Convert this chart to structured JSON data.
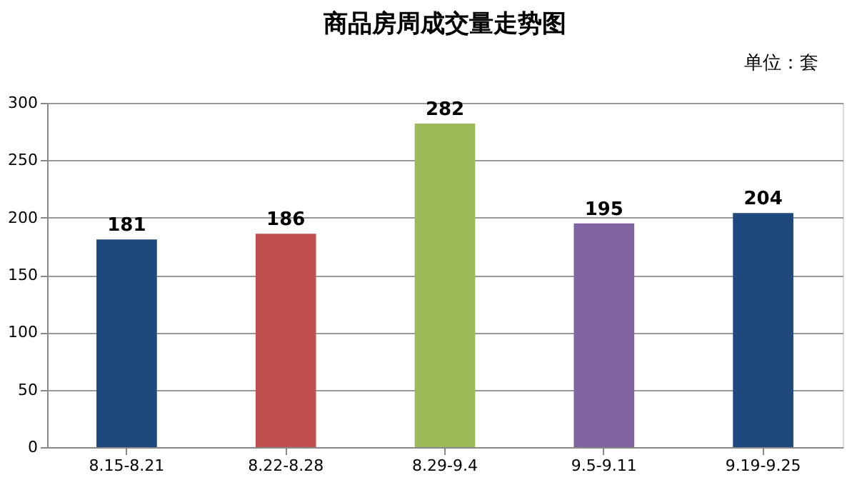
{
  "chart_data": {
    "type": "bar",
    "title": "商品房周成交量走势图",
    "annotations": [
      "单位：套"
    ],
    "categories": [
      "8.15-8.21",
      "8.22-8.28",
      "8.29-9.4",
      "9.5-9.11",
      "9.19-9.25"
    ],
    "values": [
      181,
      186,
      282,
      195,
      204
    ],
    "colors": [
      "#1f497d",
      "#c0504d",
      "#9bbb59",
      "#8064a2",
      "#1f497d"
    ],
    "ylim": [
      0,
      300
    ],
    "yticks": [
      0,
      50,
      100,
      150,
      200,
      250,
      300
    ],
    "grid": "y",
    "data_labels": true
  }
}
